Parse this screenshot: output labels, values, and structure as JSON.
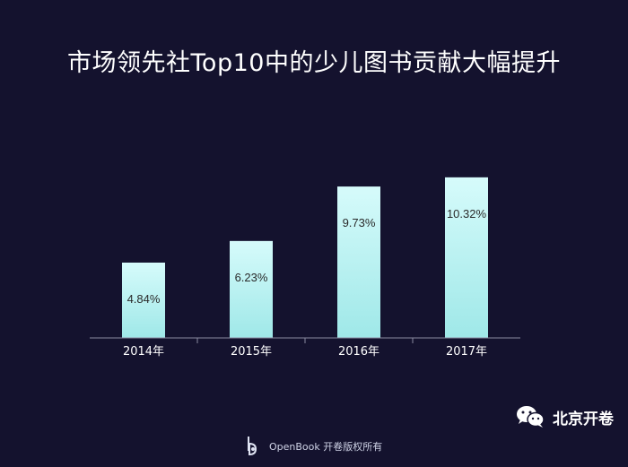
{
  "chart_data": {
    "type": "bar",
    "title": "市场领先社Top10中的少儿图书贡献大幅提升",
    "categories": [
      "2014年",
      "2015年",
      "2016年",
      "2017年"
    ],
    "values": [
      4.84,
      6.23,
      9.73,
      10.32
    ],
    "labels": [
      "4.84%",
      "6.23%",
      "9.73%",
      "10.32%"
    ],
    "ylim": [
      0,
      12.5
    ],
    "grid": false,
    "legend": "none",
    "colors": {
      "bar_top": "#d6fbfb",
      "bar_bottom": "#9fe8e8",
      "axis": "#8a8aa0",
      "text": "#ffffff",
      "bar_label": "#2a2a2a",
      "background": "#14122e"
    }
  },
  "footer": {
    "text": "OpenBook 开卷版权所有"
  },
  "watermark": {
    "text": "北京开卷"
  }
}
